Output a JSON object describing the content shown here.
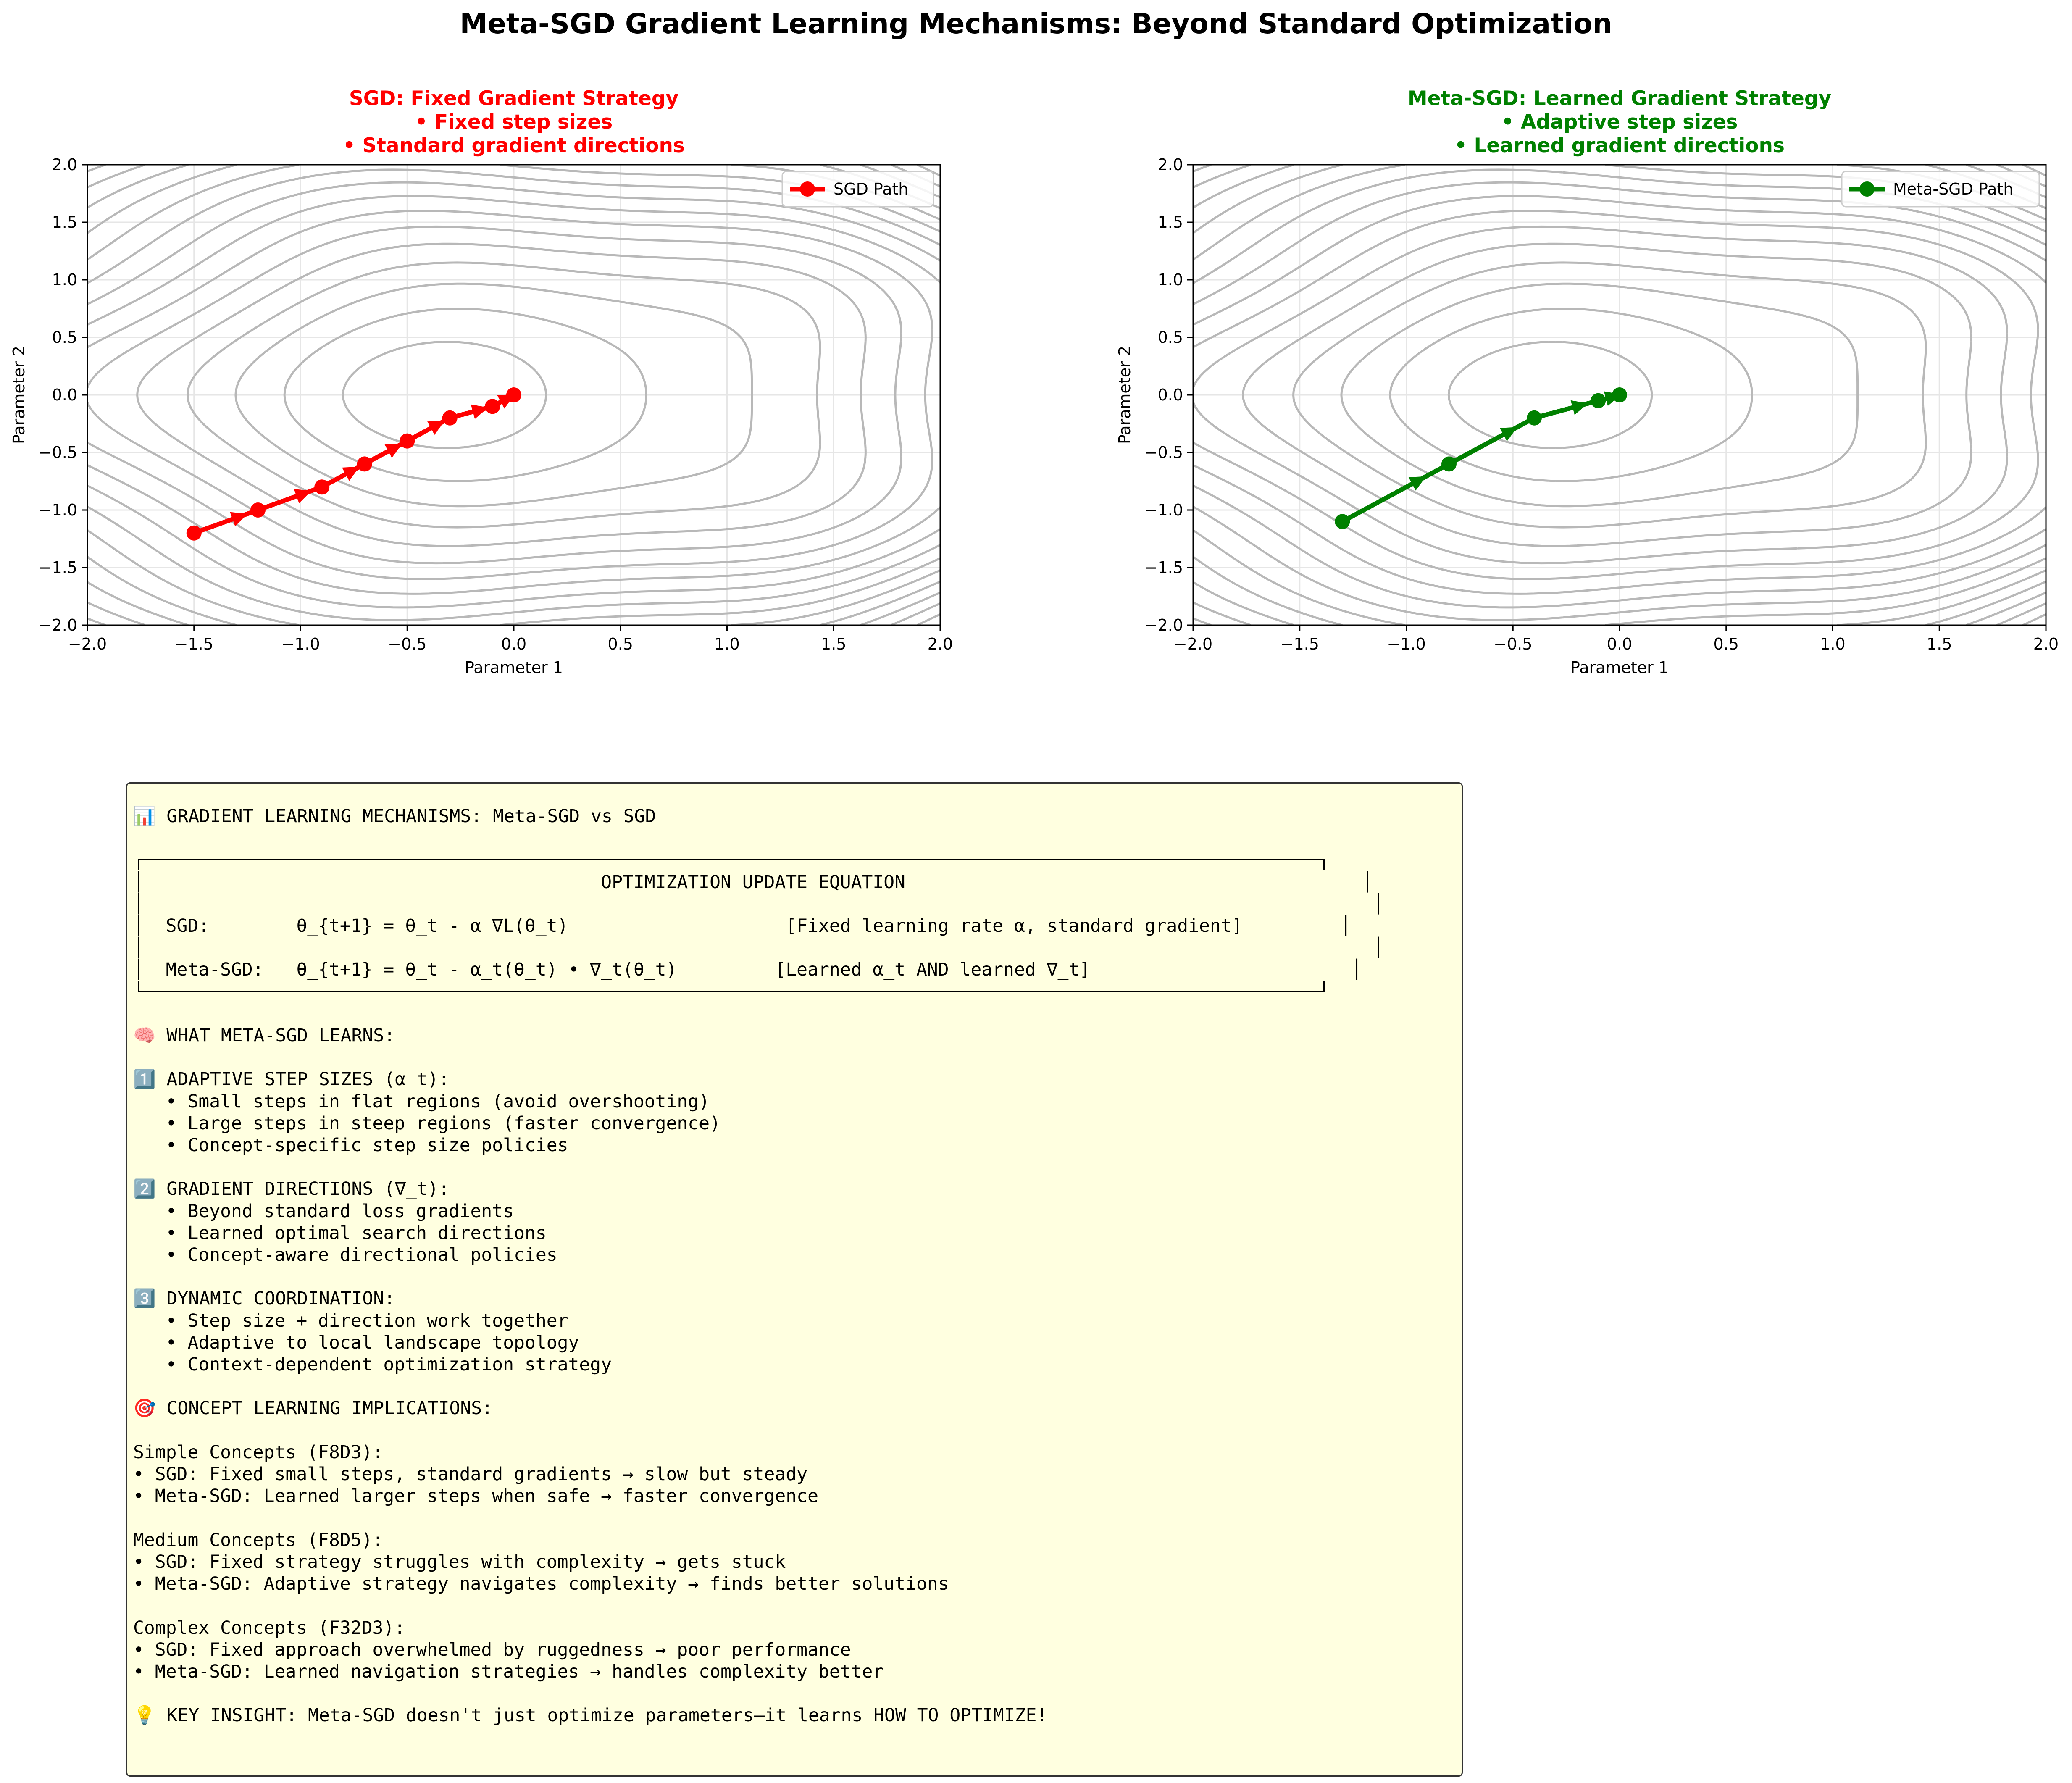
{
  "title": "Meta-SGD Gradient Learning Mechanisms: Beyond Standard Optimization",
  "chart_data": [
    {
      "type": "line",
      "title_lines": [
        "SGD: Fixed Gradient Strategy",
        "• Fixed step sizes",
        "• Standard gradient directions"
      ],
      "title_color": "#ff0000",
      "xlabel": "Parameter 1",
      "ylabel": "Parameter 2",
      "xlim": [
        -2.0,
        2.0
      ],
      "ylim": [
        -2.0,
        2.0
      ],
      "xticks": [
        "−2.0",
        "−1.5",
        "−1.0",
        "−0.5",
        "0.0",
        "0.5",
        "1.0",
        "1.5",
        "2.0"
      ],
      "yticks": [
        "−2.0",
        "−1.5",
        "−1.0",
        "−0.5",
        "0.0",
        "0.5",
        "1.0",
        "1.5",
        "2.0"
      ],
      "grid": true,
      "legend_position": "top-right",
      "background": "contour lines of loss landscape",
      "series": [
        {
          "name": "SGD Path",
          "color": "#ff0000",
          "marker": "circle",
          "x": [
            -1.5,
            -1.2,
            -0.9,
            -0.7,
            -0.5,
            -0.3,
            -0.1,
            0.0
          ],
          "y": [
            -1.2,
            -1.0,
            -0.8,
            -0.6,
            -0.4,
            -0.2,
            -0.1,
            0.0
          ]
        }
      ]
    },
    {
      "type": "line",
      "title_lines": [
        "Meta-SGD: Learned Gradient Strategy",
        "• Adaptive step sizes",
        "• Learned gradient directions"
      ],
      "title_color": "#008000",
      "xlabel": "Parameter 1",
      "ylabel": "Parameter 2",
      "xlim": [
        -2.0,
        2.0
      ],
      "ylim": [
        -2.0,
        2.0
      ],
      "xticks": [
        "−2.0",
        "−1.5",
        "−1.0",
        "−0.5",
        "0.0",
        "0.5",
        "1.0",
        "1.5",
        "2.0"
      ],
      "yticks": [
        "−2.0",
        "−1.5",
        "−1.0",
        "−0.5",
        "0.0",
        "0.5",
        "1.0",
        "1.5",
        "2.0"
      ],
      "grid": true,
      "legend_position": "top-right",
      "background": "contour lines of loss landscape",
      "series": [
        {
          "name": "Meta-SGD Path",
          "color": "#008000",
          "marker": "circle",
          "x": [
            -1.3,
            -0.8,
            -0.4,
            -0.1,
            0.0
          ],
          "y": [
            -1.1,
            -0.6,
            -0.2,
            -0.05,
            0.0
          ]
        }
      ]
    }
  ],
  "info_panel": {
    "lines": [
      "📊 GRADIENT LEARNING MECHANISMS: Meta-SGD vs SGD",
      "",
      "┌────────────────────────────────────────────────────────────────────────────────────────────────────────────┐",
      "│                                          OPTIMIZATION UPDATE EQUATION                                          │",
      "│                                                                                                                 │",
      "│  SGD:        θ_{t+1} = θ_t - α ∇L(θ_t)                    [Fixed learning rate α, standard gradient]         │",
      "│                                                                                                                 │",
      "│  Meta-SGD:   θ_{t+1} = θ_t - α_t(θ_t) • ∇_t(θ_t)         [Learned α_t AND learned ∇_t]                        │",
      "└────────────────────────────────────────────────────────────────────────────────────────────────────────────┘",
      "",
      "🧠 WHAT META-SGD LEARNS:",
      "",
      "1️⃣ ADAPTIVE STEP SIZES (α_t):",
      "   • Small steps in flat regions (avoid overshooting)",
      "   • Large steps in steep regions (faster convergence)",
      "   • Concept-specific step size policies",
      "",
      "2️⃣ GRADIENT DIRECTIONS (∇_t):",
      "   • Beyond standard loss gradients",
      "   • Learned optimal search directions",
      "   • Concept-aware directional policies",
      "",
      "3️⃣ DYNAMIC COORDINATION:",
      "   • Step size + direction work together",
      "   • Adaptive to local landscape topology",
      "   • Context-dependent optimization strategy",
      "",
      "🎯 CONCEPT LEARNING IMPLICATIONS:",
      "",
      "Simple Concepts (F8D3):",
      "• SGD: Fixed small steps, standard gradients → slow but steady",
      "• Meta-SGD: Learned larger steps when safe → faster convergence",
      "",
      "Medium Concepts (F8D5):",
      "• SGD: Fixed strategy struggles with complexity → gets stuck",
      "• Meta-SGD: Adaptive strategy navigates complexity → finds better solutions",
      "",
      "Complex Concepts (F32D3):",
      "• SGD: Fixed approach overwhelmed by ruggedness → poor performance",
      "• Meta-SGD: Learned navigation strategies → handles complexity better",
      "",
      "💡 KEY INSIGHT: Meta-SGD doesn't just optimize parameters—it learns HOW TO OPTIMIZE!"
    ]
  }
}
